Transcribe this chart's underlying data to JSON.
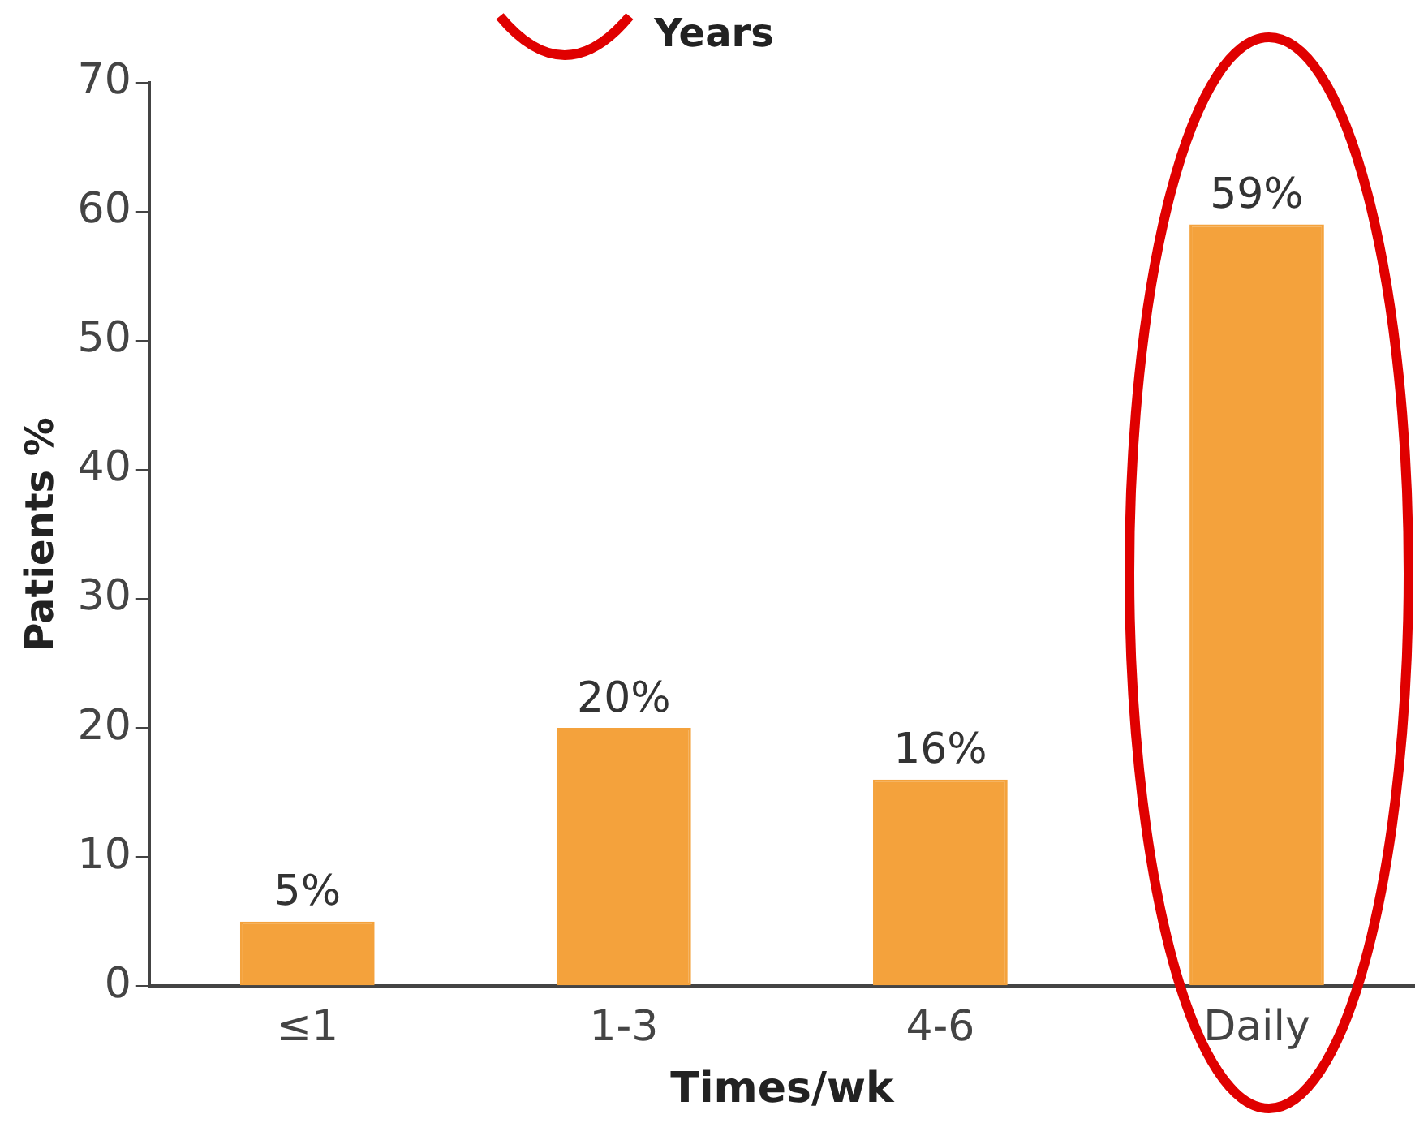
{
  "chart_data": {
    "type": "bar",
    "title": "Years",
    "xlabel": "Times/wk",
    "ylabel": "Patients %",
    "categories": [
      "≤1",
      "1-3",
      "4-6",
      "Daily"
    ],
    "values": [
      5,
      20,
      16,
      59
    ],
    "value_labels": [
      "5%",
      "20%",
      "16%",
      "59%"
    ],
    "color": "#f4a23c",
    "ylim": [
      0,
      70
    ],
    "yticks": [
      0,
      10,
      20,
      30,
      40,
      50,
      60,
      70
    ],
    "grid": false,
    "legend": false
  }
}
